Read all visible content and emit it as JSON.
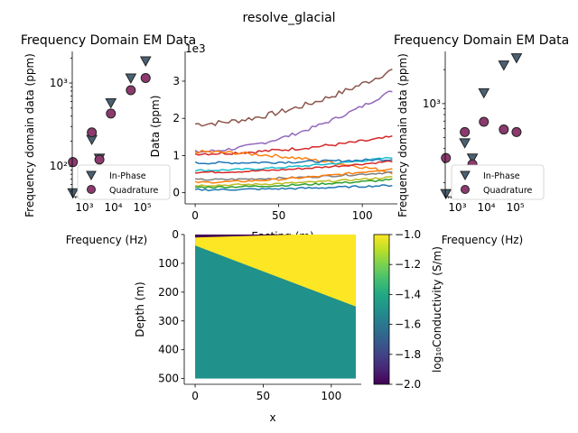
{
  "suptitle": "resolve_glacial",
  "colors": {
    "in_phase": "#4a6174",
    "quadrature": "#8c3a6e",
    "marker_edge": "#222222",
    "model_top": "#440154",
    "model_cold": "#fde725",
    "model_deep": "#21918c"
  },
  "chart_data": [
    {
      "type": "scatter",
      "title": "Frequency Domain EM Data",
      "xlabel": "Frequency (Hz)",
      "ylabel": "Frequency domain data (ppm)",
      "xscale": "log",
      "yscale": "log",
      "xlim": [
        380,
        170000
      ],
      "ylim": [
        43,
        2400
      ],
      "xticks": [
        {
          "v": 1000,
          "label": "10³"
        },
        {
          "v": 10000,
          "label": "10⁴"
        },
        {
          "v": 100000,
          "label": "10⁵"
        }
      ],
      "yticks": [
        {
          "v": 100,
          "label": "10²"
        },
        {
          "v": 1000,
          "label": "10³"
        }
      ],
      "legend": {
        "placement": "lower-right",
        "entries": [
          "In-Phase",
          "Quadrature"
        ]
      },
      "series": [
        {
          "name": "In-Phase",
          "marker": "triangle-down",
          "x": [
            400,
            1800,
            3300,
            8200,
            40000,
            130000
          ],
          "y": [
            48,
            210,
            125,
            580,
            1150,
            1850
          ]
        },
        {
          "name": "Quadrature",
          "marker": "circle",
          "x": [
            400,
            1800,
            3300,
            8200,
            40000,
            130000
          ],
          "y": [
            112,
            255,
            120,
            430,
            820,
            1150
          ]
        }
      ]
    },
    {
      "type": "line",
      "title": "",
      "xlabel": "Easting (m)",
      "ylabel": "Data (ppm)",
      "offset_text": "1e3",
      "xlim": [
        -6,
        121
      ],
      "ylim": [
        -0.3,
        3.8
      ],
      "xticks": [
        0,
        50,
        100
      ],
      "yticks": [
        0,
        1,
        2,
        3
      ],
      "series_count": 12,
      "series": [
        {
          "color": "#8c564b",
          "start": 1.85,
          "end": 3.3
        },
        {
          "color": "#9467bd",
          "start": 1.1,
          "end": 2.75
        },
        {
          "color": "#d62728",
          "start": 1.05,
          "end": 1.5
        },
        {
          "color": "#ff7f0e",
          "start": 1.1,
          "end": 0.55
        },
        {
          "color": "#17becf",
          "start": 0.6,
          "end": 0.95
        },
        {
          "color": "#1f77b4",
          "start": 0.8,
          "end": 0.9
        },
        {
          "color": "#d62728",
          "start": 0.55,
          "end": 0.85
        },
        {
          "color": "#7f7f7f",
          "start": 0.35,
          "end": 0.55
        },
        {
          "color": "#ff7f0e",
          "start": 0.28,
          "end": 0.65
        },
        {
          "color": "#bcbd22",
          "start": 0.2,
          "end": 0.42
        },
        {
          "color": "#2ca02c",
          "start": 0.15,
          "end": 0.35
        },
        {
          "color": "#1f77b4",
          "start": 0.08,
          "end": 0.2
        }
      ]
    },
    {
      "type": "scatter",
      "title": "Frequency Domain EM Data",
      "xlabel": "Frequency (Hz)",
      "ylabel": "Frequency domain data (ppm)",
      "xscale": "log",
      "yscale": "log",
      "xlim": [
        380,
        170000
      ],
      "ylim": [
        150,
        2900
      ],
      "xticks": [
        {
          "v": 1000,
          "label": "10³"
        },
        {
          "v": 10000,
          "label": "10⁴"
        },
        {
          "v": 100000,
          "label": "10⁵"
        }
      ],
      "yticks": [
        {
          "v": 1000,
          "label": "10³"
        }
      ],
      "legend": {
        "placement": "lower-right",
        "entries": [
          "In-Phase",
          "Quadrature"
        ]
      },
      "series": [
        {
          "name": "In-Phase",
          "marker": "triangle-down",
          "x": [
            400,
            1800,
            3300,
            8200,
            40000,
            110000
          ],
          "y": [
            160,
            450,
            330,
            1250,
            2200,
            2550
          ]
        },
        {
          "name": "Quadrature",
          "marker": "circle",
          "x": [
            400,
            1800,
            3300,
            8200,
            40000,
            110000
          ],
          "y": [
            330,
            560,
            290,
            690,
            590,
            560
          ]
        }
      ]
    },
    {
      "type": "heatmap",
      "title": "",
      "xlabel": "x",
      "ylabel": "Depth (m)",
      "xlim": [
        -8,
        122
      ],
      "ylim": [
        520,
        0
      ],
      "xticks": [
        0,
        50,
        100
      ],
      "yticks": [
        0,
        100,
        200,
        300,
        400,
        500
      ],
      "x_extent": [
        0,
        118
      ],
      "depth_extent": [
        0,
        500
      ],
      "layers": [
        {
          "name": "top",
          "value": -2.0,
          "top_depth_start": 0,
          "bottom_depth_start": 10,
          "bottom_depth_end": 0
        },
        {
          "name": "ice",
          "value": -1.0,
          "bottom_depth_start": 38,
          "bottom_depth_end": 250
        },
        {
          "name": "bedrock",
          "value": -1.5
        }
      ],
      "colorbar": {
        "label": "log₁₀Conductivity (S/m)",
        "range": [
          -2.0,
          -1.0
        ],
        "ticks": [
          -2.0,
          -1.8,
          -1.6,
          -1.4,
          -1.2,
          -1.0
        ],
        "tick_labels": [
          "−2.0",
          "−1.8",
          "−1.6",
          "−1.4",
          "−1.2",
          "−1.0"
        ]
      }
    }
  ]
}
